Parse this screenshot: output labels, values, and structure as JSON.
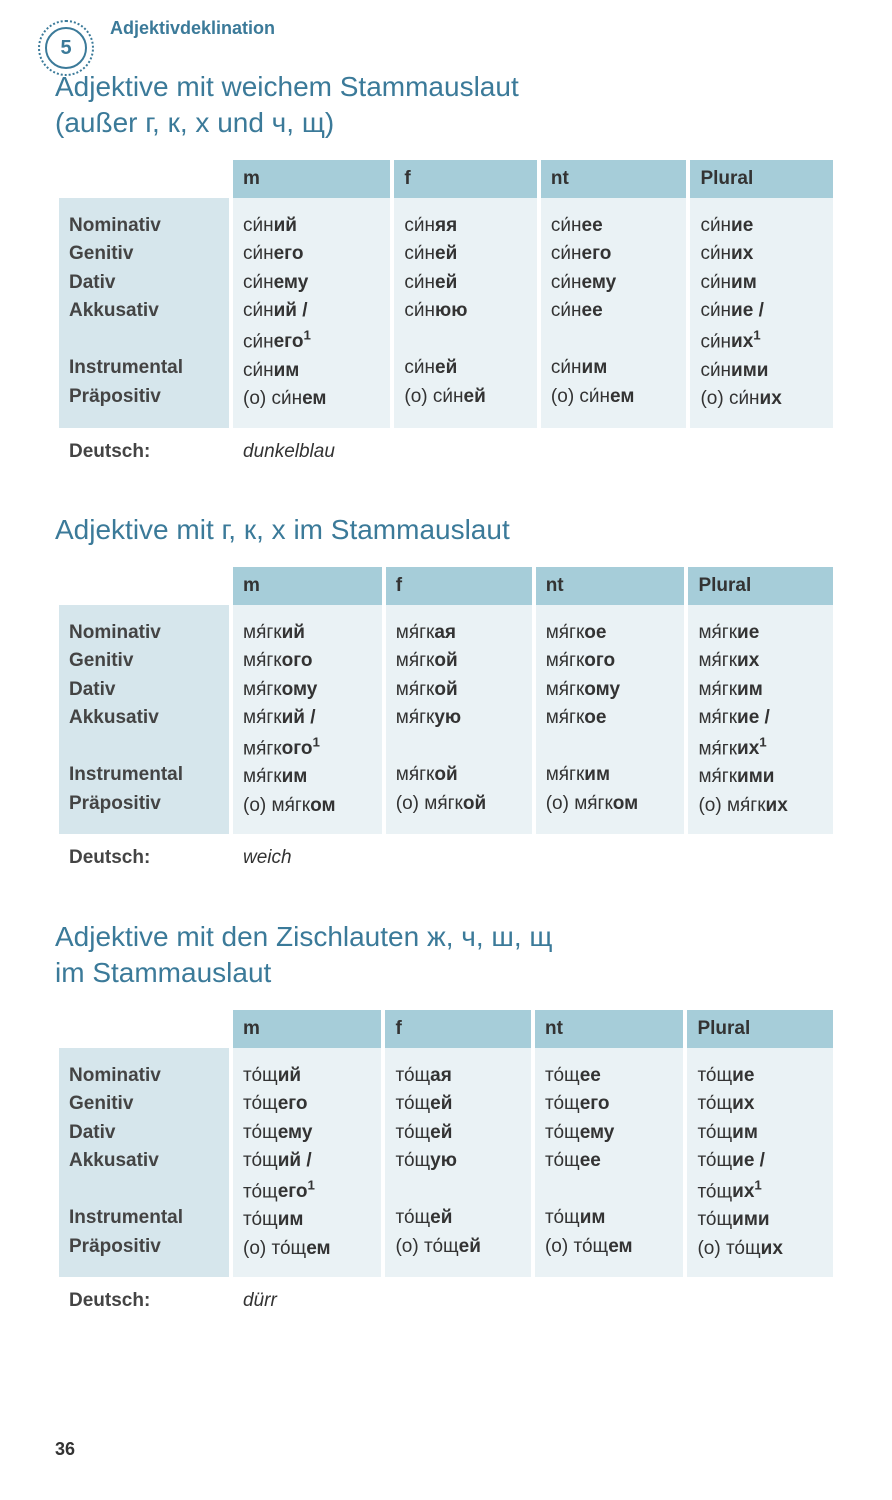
{
  "header": {
    "chapter": "5",
    "title": "Adjektivdeklination"
  },
  "page_number": "36",
  "columns": [
    "m",
    "f",
    "nt",
    "Plural"
  ],
  "cases": [
    "Nominativ",
    "Genitiv",
    "Dativ",
    "Akkusativ",
    "",
    "Instrumental",
    "Präpositiv"
  ],
  "deutsch_label": "Deutsch:",
  "sections": [
    {
      "title": "Adjektive mit weichem Stammauslaut\n(außer г, к, х und ч, щ)",
      "translation": "dunkelblau",
      "data": {
        "m": [
          [
            "си́н",
            "ий"
          ],
          [
            "си́н",
            "его"
          ],
          [
            "си́н",
            "ему"
          ],
          [
            "си́н",
            "ий /"
          ],
          [
            "си́н",
            "его¹"
          ],
          [
            "си́н",
            "им"
          ],
          [
            "(о) си́н",
            "ем"
          ]
        ],
        "f": [
          [
            "си́н",
            "яя"
          ],
          [
            "си́н",
            "ей"
          ],
          [
            "си́н",
            "ей"
          ],
          [
            "си́н",
            "юю"
          ],
          [
            "",
            ""
          ],
          [
            "си́н",
            "ей"
          ],
          [
            "(о) си́н",
            "ей"
          ]
        ],
        "nt": [
          [
            "си́н",
            "ее"
          ],
          [
            "си́н",
            "его"
          ],
          [
            "си́н",
            "ему"
          ],
          [
            "си́н",
            "ее"
          ],
          [
            "",
            ""
          ],
          [
            "си́н",
            "им"
          ],
          [
            "(о) си́н",
            "ем"
          ]
        ],
        "pl": [
          [
            "си́н",
            "ие"
          ],
          [
            "си́н",
            "их"
          ],
          [
            "си́н",
            "им"
          ],
          [
            "си́н",
            "ие /"
          ],
          [
            "си́н",
            "их¹"
          ],
          [
            "си́н",
            "ими"
          ],
          [
            "(о) си́н",
            "их"
          ]
        ]
      }
    },
    {
      "title": "Adjektive mit г, к, х im Stammauslaut",
      "translation": "weich",
      "data": {
        "m": [
          [
            "мя́гк",
            "ий"
          ],
          [
            "мя́гк",
            "ого"
          ],
          [
            "мя́гк",
            "ому"
          ],
          [
            "мя́гк",
            "ий /"
          ],
          [
            "мя́гк",
            "ого¹"
          ],
          [
            "мя́гк",
            "им"
          ],
          [
            "(о) мя́гк",
            "ом"
          ]
        ],
        "f": [
          [
            "мя́гк",
            "ая"
          ],
          [
            "мя́гк",
            "ой"
          ],
          [
            "мя́гк",
            "ой"
          ],
          [
            "мя́гк",
            "ую"
          ],
          [
            "",
            ""
          ],
          [
            "мя́гк",
            "ой"
          ],
          [
            "(о) мя́гк",
            "ой"
          ]
        ],
        "nt": [
          [
            "мя́гк",
            "ое"
          ],
          [
            "мя́гк",
            "ого"
          ],
          [
            "мя́гк",
            "ому"
          ],
          [
            "мя́гк",
            "ое"
          ],
          [
            "",
            ""
          ],
          [
            "мя́гк",
            "им"
          ],
          [
            "(о) мя́гк",
            "ом"
          ]
        ],
        "pl": [
          [
            "мя́гк",
            "ие"
          ],
          [
            "мя́гк",
            "их"
          ],
          [
            "мя́гк",
            "им"
          ],
          [
            "мя́гк",
            "ие /"
          ],
          [
            "мя́гк",
            "их¹"
          ],
          [
            "мя́гк",
            "ими"
          ],
          [
            "(о) мя́гк",
            "их"
          ]
        ]
      }
    },
    {
      "title": "Adjektive mit den Zischlauten ж, ч, ш, щ\nim Stammauslaut",
      "translation": "dürr",
      "data": {
        "m": [
          [
            "то́щ",
            "ий"
          ],
          [
            "то́щ",
            "его"
          ],
          [
            "то́щ",
            "ему"
          ],
          [
            "то́щ",
            "ий /"
          ],
          [
            "то́щ",
            "его¹"
          ],
          [
            "то́щ",
            "им"
          ],
          [
            "(о) то́щ",
            "ем"
          ]
        ],
        "f": [
          [
            "то́щ",
            "ая"
          ],
          [
            "то́щ",
            "ей"
          ],
          [
            "то́щ",
            "ей"
          ],
          [
            "то́щ",
            "ую"
          ],
          [
            "",
            ""
          ],
          [
            "то́щ",
            "ей"
          ],
          [
            "(о) то́щ",
            "ей"
          ]
        ],
        "nt": [
          [
            "то́щ",
            "ее"
          ],
          [
            "то́щ",
            "его"
          ],
          [
            "то́щ",
            "ему"
          ],
          [
            "то́щ",
            "ее"
          ],
          [
            "",
            ""
          ],
          [
            "то́щ",
            "им"
          ],
          [
            "(о) то́щ",
            "ем"
          ]
        ],
        "pl": [
          [
            "то́щ",
            "ие"
          ],
          [
            "то́щ",
            "их"
          ],
          [
            "то́щ",
            "им"
          ],
          [
            "то́щ",
            "ие /"
          ],
          [
            "то́щ",
            "их¹"
          ],
          [
            "то́щ",
            "ими"
          ],
          [
            "(о) то́щ",
            "их"
          ]
        ]
      }
    }
  ]
}
